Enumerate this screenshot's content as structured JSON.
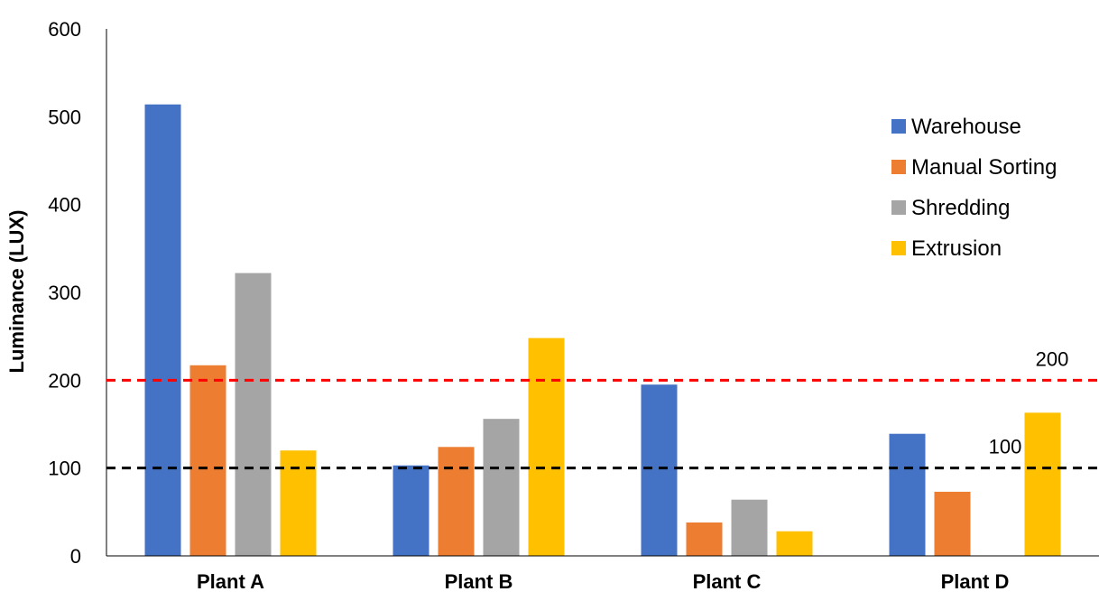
{
  "chart_data": {
    "type": "bar",
    "title": "",
    "xlabel": "",
    "ylabel": "Luminance (LUX)",
    "ylim": [
      0,
      600
    ],
    "yticks": [
      0,
      100,
      200,
      300,
      400,
      500,
      600
    ],
    "grid": false,
    "legend_position": "right",
    "categories": [
      "Plant A",
      "Plant B",
      "Plant C",
      "Plant D"
    ],
    "series": [
      {
        "name": "Warehouse",
        "color": "#4472C4",
        "values": [
          514,
          103,
          195,
          139
        ]
      },
      {
        "name": "Manual Sorting",
        "color": "#ED7D31",
        "values": [
          217,
          124,
          38,
          73
        ]
      },
      {
        "name": "Shredding",
        "color": "#A5A5A5",
        "values": [
          322,
          156,
          64,
          null
        ]
      },
      {
        "name": "Extrusion",
        "color": "#FFC000",
        "values": [
          120,
          248,
          28,
          163
        ]
      }
    ],
    "reference_lines": [
      {
        "value": 200,
        "label": "200",
        "color": "#FF0000",
        "style": "dashed"
      },
      {
        "value": 100,
        "label": "100",
        "color": "#000000",
        "style": "dashed"
      }
    ]
  }
}
